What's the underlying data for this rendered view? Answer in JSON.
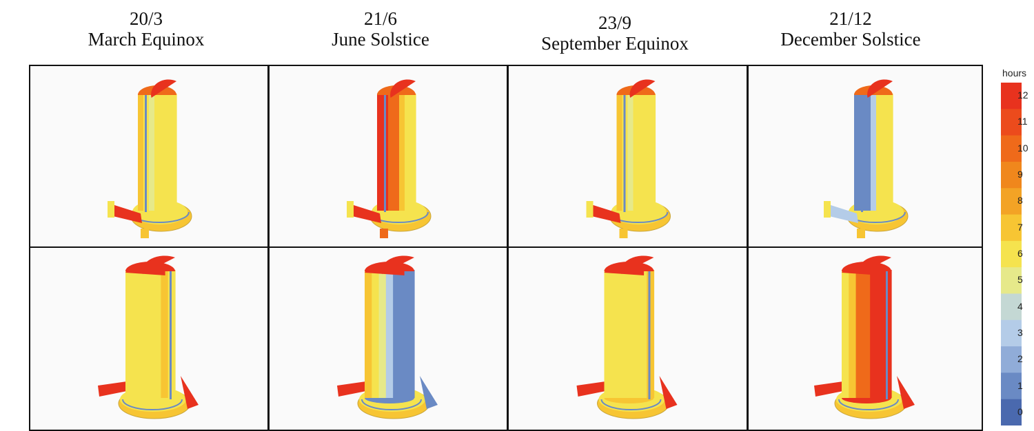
{
  "columns": [
    {
      "date": "20/3",
      "name": "March Equinox"
    },
    {
      "date": "21/6",
      "name": "June Solstice"
    },
    {
      "date": "23/9",
      "name": "September Equinox"
    },
    {
      "date": "21/12",
      "name": "December Solstice"
    }
  ],
  "legend": {
    "title": "hours",
    "ticks": [
      "12",
      "11",
      "10",
      "9",
      "8",
      "7",
      "6",
      "5",
      "4",
      "3",
      "2",
      "1",
      "0"
    ],
    "colors": [
      "#e8321e",
      "#ec4b1c",
      "#ef6a1a",
      "#f0871c",
      "#f3a325",
      "#f7c533",
      "#f5e34e",
      "#e6e98a",
      "#c4d8d4",
      "#b4cce8",
      "#90acd8",
      "#6a8ac4",
      "#4a69ae"
    ]
  }
}
